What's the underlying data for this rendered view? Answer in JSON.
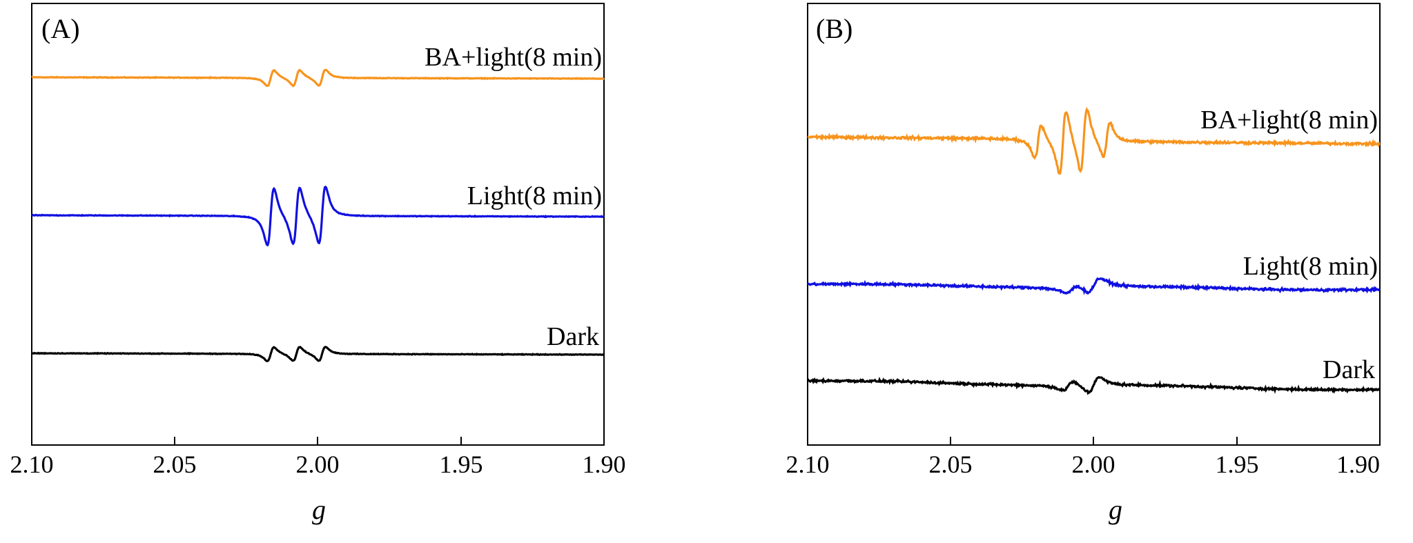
{
  "chart_data": [
    {
      "type": "line",
      "panel_label": "(A)",
      "xlabel": "g",
      "xlim": [
        2.1,
        1.9
      ],
      "x_reversed": true,
      "x_ticks": [
        "2.10",
        "2.05",
        "2.00",
        "1.95",
        "1.90"
      ],
      "y_ticks_shown": false,
      "legend": "inline labels above each trace",
      "series": [
        {
          "name": "BA+light(8 min)",
          "color": "#F7941D",
          "peaks_g": [
            2.0165,
            2.0075,
            1.9985
          ],
          "signal_amplitude": 0.5,
          "pattern": "three-line"
        },
        {
          "name": "Light(8 min)",
          "color": "#1010E0",
          "peaks_g": [
            2.0165,
            2.0075,
            1.9985
          ],
          "signal_amplitude": 1.0,
          "pattern": "three-line"
        },
        {
          "name": "Dark",
          "color": "#000000",
          "peaks_g": [
            2.0165,
            2.0075,
            1.9985
          ],
          "signal_amplitude": 0.5,
          "pattern": "three-line"
        }
      ]
    },
    {
      "type": "line",
      "panel_label": "(B)",
      "xlabel": "g",
      "xlim": [
        2.1,
        1.9
      ],
      "x_reversed": true,
      "x_ticks": [
        "2.10",
        "2.05",
        "2.00",
        "1.95",
        "1.90"
      ],
      "y_ticks_shown": false,
      "legend": "inline labels above each trace",
      "series": [
        {
          "name": "BA+light(8 min)",
          "color": "#F7941D",
          "peaks_g": [
            2.0195,
            2.0108,
            2.0035,
            1.9955
          ],
          "signal_amplitude": 1.0,
          "pattern": "four-line 1:2:2:1"
        },
        {
          "name": "Light(8 min)",
          "color": "#1010E0",
          "peaks_g": [
            2.0075,
            2.0
          ],
          "signal_amplitude": 0.04,
          "pattern": "noise"
        },
        {
          "name": "Dark",
          "color": "#000000",
          "peaks_g": [
            2.009,
            2.0
          ],
          "signal_amplitude": 0.04,
          "pattern": "noise"
        }
      ]
    }
  ]
}
